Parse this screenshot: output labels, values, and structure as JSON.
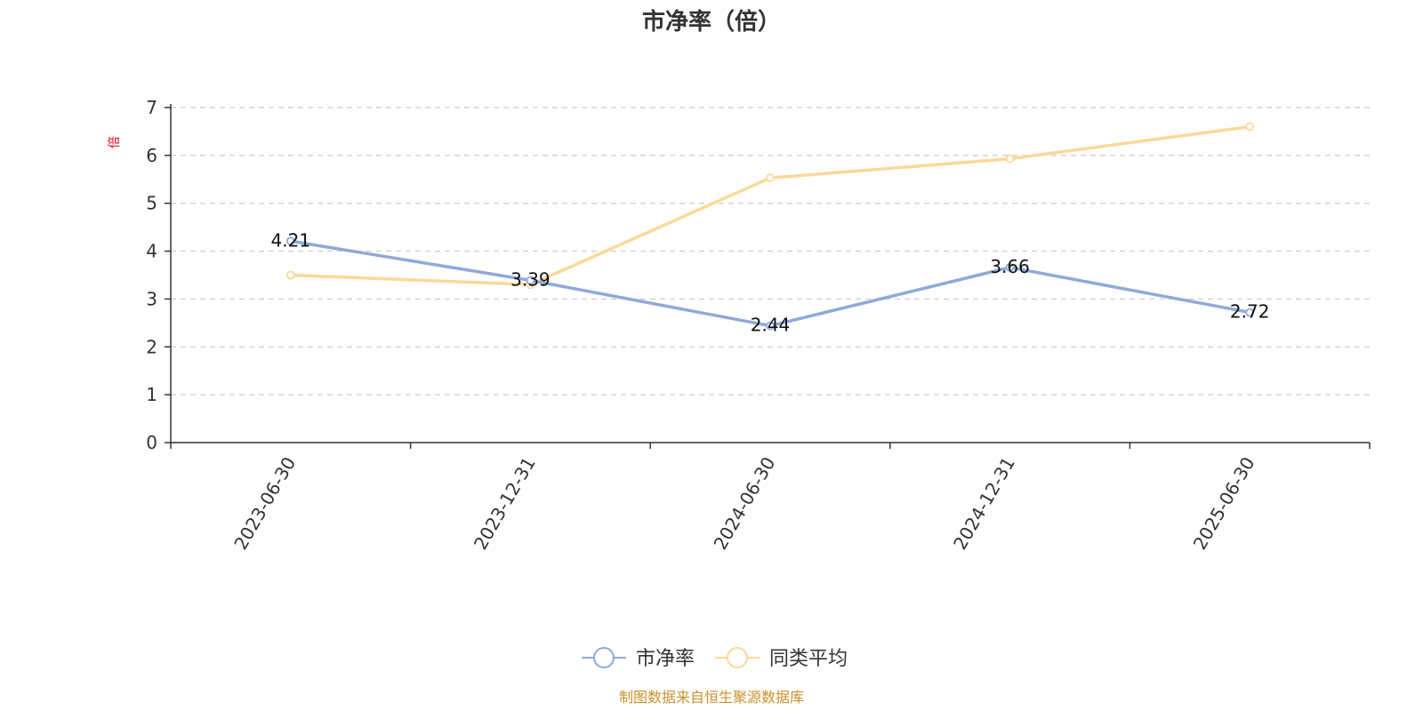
{
  "chart_data": {
    "type": "line",
    "title": "市净率（倍）",
    "ylabel": "倍",
    "xlabel": "",
    "categories": [
      "2023-06-30",
      "2023-12-31",
      "2024-06-30",
      "2024-12-31",
      "2025-06-30"
    ],
    "ylim": [
      0,
      7
    ],
    "yticks": [
      0,
      1,
      2,
      3,
      4,
      5,
      6,
      7
    ],
    "grid": true,
    "legend_position": "bottom-center",
    "series": [
      {
        "name": "市净率",
        "values": [
          4.21,
          3.39,
          2.44,
          3.66,
          2.72
        ],
        "labels": [
          "4.21",
          "3.39",
          "2.44",
          "3.66",
          "2.72"
        ],
        "color": "#8eaad8"
      },
      {
        "name": "同类平均",
        "values": [
          3.5,
          3.3,
          5.53,
          5.93,
          6.6
        ],
        "color": "#fbd99a"
      }
    ]
  },
  "source_note": "制图数据来自恒生聚源数据库"
}
